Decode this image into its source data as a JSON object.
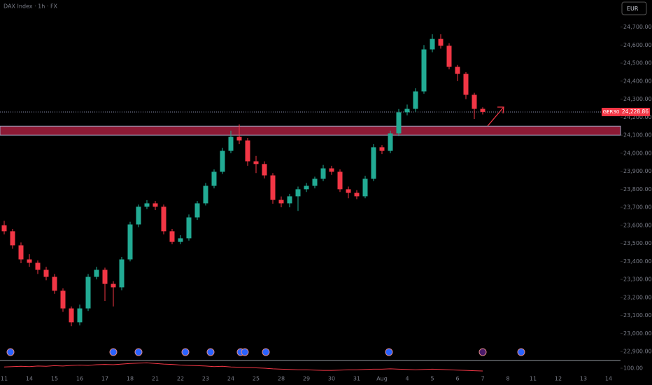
{
  "chart_data": {
    "type": "candlestick",
    "title": "DAX Index · 1h · FX",
    "currency": "EUR",
    "symbol": "GER30",
    "last_price": {
      "value": 24228.86,
      "label": "24,228.86"
    },
    "zone": [
      24100,
      24150
    ],
    "ylim": [
      22850,
      24850
    ],
    "yticks": [
      {
        "value": 22900,
        "label": "22,900.00"
      },
      {
        "value": 23000,
        "label": "23,000.00"
      },
      {
        "value": 23100,
        "label": "23,100.00"
      },
      {
        "value": 23200,
        "label": "23,200.00"
      },
      {
        "value": 23300,
        "label": "23,300.00"
      },
      {
        "value": 23400,
        "label": "23,400.00"
      },
      {
        "value": 23500,
        "label": "23,500.00"
      },
      {
        "value": 23600,
        "label": "23,600.00"
      },
      {
        "value": 23700,
        "label": "23,700.00"
      },
      {
        "value": 23800,
        "label": "23,800.00"
      },
      {
        "value": 23900,
        "label": "23,900.00"
      },
      {
        "value": 24000,
        "label": "24,000.00"
      },
      {
        "value": 24100,
        "label": "24,100.00"
      },
      {
        "value": 24200,
        "label": "24,200.00"
      },
      {
        "value": 24300,
        "label": "24,300.00"
      },
      {
        "value": 24400,
        "label": "24,400.00"
      },
      {
        "value": 24500,
        "label": "24,500.00"
      },
      {
        "value": 24600,
        "label": "24,600.00"
      },
      {
        "value": 24700,
        "label": "24,700.00"
      }
    ],
    "up_color": "#22ab94",
    "down_color": "#f23645",
    "categories": [
      "11",
      null,
      null,
      "14",
      null,
      null,
      "15",
      null,
      null,
      "16",
      null,
      null,
      "17",
      null,
      null,
      "18",
      null,
      null,
      "21",
      null,
      null,
      "22",
      null,
      null,
      "23",
      null,
      null,
      "24",
      null,
      null,
      "25",
      null,
      null,
      "28",
      null,
      null,
      "29",
      null,
      null,
      "30",
      null,
      null,
      "31",
      null,
      null,
      "Aug",
      null,
      null,
      "4",
      null,
      null,
      "5",
      null,
      null,
      "6",
      null,
      null,
      "7",
      null,
      null,
      "8",
      null,
      null,
      "11",
      null,
      null,
      "12",
      null,
      null,
      "13",
      null,
      null,
      "14",
      null
    ],
    "open": [
      23600,
      23567,
      23489,
      23411,
      23392,
      23353,
      23314,
      23237,
      23139,
      23062,
      23139,
      23314,
      23353,
      23275,
      23256,
      23411,
      23605,
      23703,
      23722,
      23703,
      23567,
      23508,
      23528,
      23644,
      23722,
      23819,
      23897,
      24013,
      24091,
      24071,
      23955,
      23940,
      23877,
      23741,
      23722,
      23761,
      23800,
      23819,
      23858,
      23916,
      23897,
      23800,
      23780,
      23761,
      23858,
      24033,
      24013,
      24110,
      24227,
      24246,
      24343,
      24576,
      24634,
      24596,
      24479,
      24440,
      24324,
      24246,
      null,
      null,
      null,
      null,
      null,
      null,
      null,
      null,
      null,
      null,
      null,
      null,
      null,
      null,
      null,
      null
    ],
    "high": [
      23625,
      23580,
      23505,
      23440,
      23405,
      23370,
      23330,
      23250,
      23150,
      23160,
      23330,
      23370,
      23365,
      23290,
      23425,
      23620,
      23715,
      23740,
      23735,
      23715,
      23580,
      23545,
      23660,
      23735,
      23835,
      23910,
      24030,
      24125,
      24160,
      24085,
      23985,
      23955,
      23890,
      23760,
      23775,
      23815,
      23835,
      23870,
      23935,
      23930,
      23910,
      23815,
      23795,
      23875,
      24050,
      24045,
      24125,
      24245,
      24270,
      24360,
      24600,
      24660,
      24660,
      24610,
      24490,
      24450,
      24335,
      24255,
      null,
      null,
      null,
      null,
      null,
      null,
      null,
      null,
      null,
      null,
      null,
      null,
      null,
      null,
      null,
      null
    ],
    "low": [
      23550,
      23470,
      23390,
      23370,
      23330,
      23295,
      23220,
      23120,
      23040,
      23045,
      23125,
      23300,
      23180,
      23150,
      23240,
      23400,
      23590,
      23690,
      23685,
      23550,
      23495,
      23495,
      23515,
      23630,
      23710,
      23805,
      23885,
      24000,
      24050,
      23930,
      23890,
      23860,
      23720,
      23700,
      23700,
      23680,
      23785,
      23805,
      23845,
      23880,
      23785,
      23750,
      23745,
      23750,
      23845,
      23995,
      24000,
      24095,
      24210,
      24230,
      24330,
      24560,
      24580,
      24465,
      24400,
      24300,
      24190,
      24215,
      null,
      null,
      null,
      null,
      null,
      null,
      null,
      null,
      null,
      null,
      null,
      null,
      null,
      null,
      null,
      null
    ],
    "close": [
      23567,
      23489,
      23411,
      23392,
      23353,
      23314,
      23237,
      23139,
      23062,
      23139,
      23314,
      23353,
      23275,
      23256,
      23411,
      23605,
      23703,
      23722,
      23703,
      23567,
      23508,
      23528,
      23644,
      23722,
      23819,
      23897,
      24013,
      24091,
      24071,
      23955,
      23940,
      23877,
      23741,
      23722,
      23761,
      23800,
      23819,
      23858,
      23916,
      23897,
      23800,
      23780,
      23761,
      23858,
      24033,
      24013,
      24110,
      24227,
      24246,
      24343,
      24576,
      24634,
      24596,
      24479,
      24440,
      24324,
      24246,
      24229,
      null,
      null,
      null,
      null,
      null,
      null,
      null,
      null,
      null,
      null,
      null,
      null,
      null,
      null,
      null,
      null
    ],
    "indicator": {
      "color": "#f23645",
      "ylim": [
        98,
        102
      ],
      "yticks": [
        {
          "value": 100,
          "label": "100.00"
        }
      ],
      "values": [
        100.4,
        100.5,
        100.6,
        100.5,
        100.7,
        100.6,
        100.8,
        100.7,
        100.9,
        101.0,
        100.9,
        101.1,
        101.2,
        101.1,
        101.3,
        101.5,
        101.6,
        101.7,
        101.5,
        101.3,
        101.2,
        101.0,
        100.9,
        100.8,
        100.7,
        100.5,
        100.6,
        100.4,
        100.3,
        100.2,
        100.1,
        100.0,
        99.8,
        99.7,
        99.6,
        99.5,
        99.5,
        99.4,
        99.3,
        99.3,
        99.4,
        99.5,
        99.5,
        99.6,
        99.7,
        99.7,
        99.8,
        99.7,
        99.6,
        99.5,
        99.6,
        99.7,
        99.6,
        99.5,
        99.4,
        99.3,
        99.2,
        99.1,
        null,
        null,
        null,
        null,
        null,
        null,
        null,
        null,
        null,
        null,
        null,
        null,
        null,
        null,
        null,
        null
      ]
    }
  }
}
